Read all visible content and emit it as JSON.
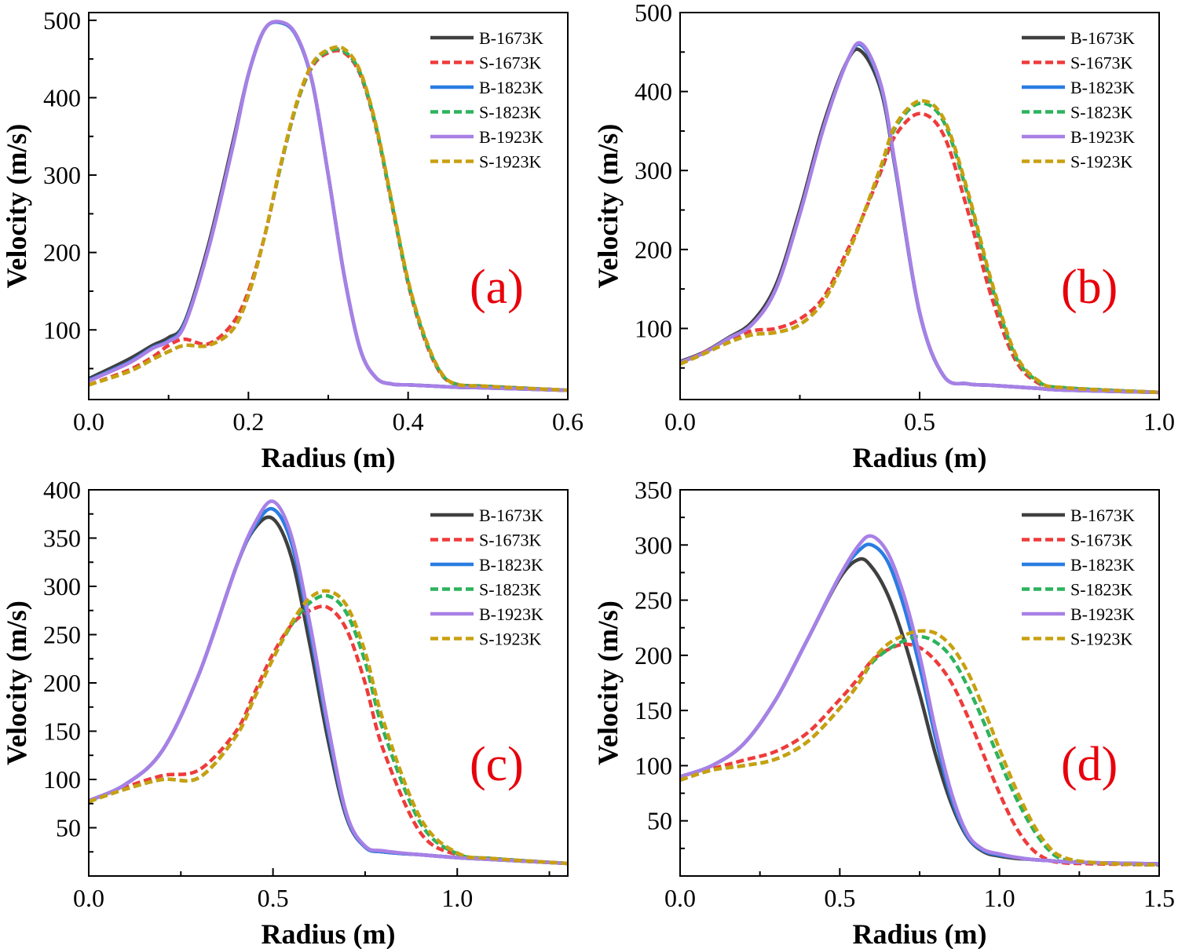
{
  "figure": {
    "series_styles": [
      {
        "name": "B-1673K",
        "color": "#404040",
        "dash": false
      },
      {
        "name": "S-1673K",
        "color": "#ef3b3b",
        "dash": true
      },
      {
        "name": "B-1823K",
        "color": "#2a7de1",
        "dash": false
      },
      {
        "name": "S-1823K",
        "color": "#2db35d",
        "dash": true
      },
      {
        "name": "B-1923K",
        "color": "#a880e6",
        "dash": false
      },
      {
        "name": "S-1923K",
        "color": "#c8a010",
        "dash": true
      }
    ]
  },
  "chart_data": [
    {
      "type": "line",
      "panel_label": "(a)",
      "xlabel": "Radius (m)",
      "ylabel": "Velocity (m/s)",
      "xlim": [
        0,
        0.6
      ],
      "ylim": [
        10,
        510
      ],
      "xticks": [
        0.0,
        0.2,
        0.4,
        0.6
      ],
      "xtick_labels": [
        "0.0",
        "0.2",
        "0.4",
        "0.6"
      ],
      "yticks": [
        100,
        200,
        300,
        400,
        500
      ],
      "ytick_labels": [
        "100",
        "200",
        "300",
        "400",
        "500"
      ],
      "legend": [
        "B-1673K",
        "S-1673K",
        "B-1823K",
        "S-1823K",
        "B-1923K",
        "S-1923K"
      ],
      "x": [
        0,
        0.05,
        0.08,
        0.1,
        0.12,
        0.15,
        0.18,
        0.2,
        0.22,
        0.24,
        0.26,
        0.28,
        0.3,
        0.32,
        0.34,
        0.36,
        0.38,
        0.4,
        0.42,
        0.44,
        0.46,
        0.5,
        0.6
      ],
      "series": [
        {
          "name": "B-1673K",
          "values": [
            37,
            62,
            80,
            90,
            110,
            210,
            340,
            430,
            488,
            497,
            480,
            420,
            300,
            170,
            75,
            38,
            30,
            29,
            28,
            27,
            26,
            25,
            22
          ]
        },
        {
          "name": "S-1673K",
          "values": [
            29,
            48,
            65,
            80,
            88,
            82,
            108,
            150,
            220,
            310,
            390,
            440,
            458,
            458,
            430,
            360,
            260,
            160,
            90,
            45,
            30,
            27,
            22
          ]
        },
        {
          "name": "B-1823K",
          "values": [
            35,
            58,
            77,
            86,
            108,
            205,
            335,
            430,
            488,
            497,
            480,
            420,
            300,
            170,
            75,
            38,
            30,
            29,
            28,
            27,
            26,
            25,
            22
          ]
        },
        {
          "name": "S-1823K",
          "values": [
            29,
            46,
            62,
            72,
            80,
            80,
            100,
            145,
            220,
            310,
            390,
            442,
            460,
            460,
            432,
            362,
            262,
            162,
            92,
            46,
            30,
            27,
            22
          ]
        },
        {
          "name": "B-1923K",
          "values": [
            34,
            57,
            76,
            85,
            106,
            205,
            335,
            430,
            488,
            498,
            481,
            421,
            300,
            170,
            75,
            38,
            30,
            29,
            28,
            27,
            26,
            25,
            22
          ]
        },
        {
          "name": "S-1923K",
          "values": [
            29,
            46,
            62,
            72,
            80,
            80,
            100,
            145,
            220,
            312,
            392,
            444,
            462,
            463,
            434,
            364,
            264,
            164,
            94,
            47,
            30,
            27,
            22
          ]
        }
      ]
    },
    {
      "type": "line",
      "panel_label": "(b)",
      "xlabel": "Radius (m)",
      "ylabel": "Velocity (m/s)",
      "xlim": [
        0,
        1.0
      ],
      "ylim": [
        10,
        500
      ],
      "xticks": [
        0.0,
        0.5,
        1.0
      ],
      "xtick_labels": [
        "0.0",
        "0.5",
        "1.0"
      ],
      "yticks": [
        100,
        200,
        300,
        400,
        500
      ],
      "ytick_labels": [
        "100",
        "200",
        "300",
        "400",
        "500"
      ],
      "legend": [
        "B-1673K",
        "S-1673K",
        "B-1823K",
        "S-1823K",
        "B-1923K",
        "S-1923K"
      ],
      "x": [
        0,
        0.05,
        0.1,
        0.15,
        0.2,
        0.25,
        0.3,
        0.35,
        0.38,
        0.42,
        0.45,
        0.5,
        0.55,
        0.6,
        0.65,
        0.7,
        0.75,
        0.8,
        1.0
      ],
      "series": [
        {
          "name": "B-1673K",
          "values": [
            58,
            70,
            88,
            108,
            155,
            250,
            360,
            440,
            450,
            400,
            300,
            120,
            40,
            30,
            28,
            26,
            24,
            22,
            19
          ]
        },
        {
          "name": "S-1673K",
          "values": [
            55,
            70,
            85,
            97,
            100,
            112,
            140,
            200,
            240,
            300,
            345,
            372,
            345,
            250,
            140,
            60,
            30,
            25,
            19
          ]
        },
        {
          "name": "B-1823K",
          "values": [
            57,
            69,
            87,
            105,
            150,
            245,
            355,
            440,
            458,
            405,
            302,
            120,
            40,
            30,
            28,
            26,
            24,
            22,
            19
          ]
        },
        {
          "name": "S-1823K",
          "values": [
            55,
            68,
            82,
            92,
            95,
            105,
            135,
            195,
            240,
            305,
            355,
            385,
            362,
            270,
            155,
            65,
            32,
            25,
            19
          ]
        },
        {
          "name": "B-1923K",
          "values": [
            57,
            69,
            87,
            105,
            150,
            245,
            355,
            440,
            460,
            407,
            304,
            121,
            40,
            30,
            28,
            26,
            24,
            22,
            19
          ]
        },
        {
          "name": "S-1923K",
          "values": [
            55,
            68,
            82,
            92,
            95,
            105,
            135,
            195,
            240,
            307,
            358,
            388,
            366,
            275,
            160,
            68,
            33,
            25,
            19
          ]
        }
      ]
    },
    {
      "type": "line",
      "panel_label": "(c)",
      "xlabel": "Radius (m)",
      "ylabel": "Velocity (m/s)",
      "xlim": [
        0,
        1.3
      ],
      "ylim": [
        0,
        400
      ],
      "xticks": [
        0.0,
        0.5,
        1.0
      ],
      "xtick_labels": [
        "0.0",
        "0.5",
        "1.0"
      ],
      "yticks": [
        50,
        100,
        150,
        200,
        250,
        300,
        350,
        400
      ],
      "ytick_labels": [
        "50",
        "100",
        "150",
        "200",
        "250",
        "300",
        "350",
        "400"
      ],
      "legend": [
        "B-1673K",
        "S-1673K",
        "B-1823K",
        "S-1823K",
        "B-1923K",
        "S-1923K"
      ],
      "x": [
        0,
        0.1,
        0.2,
        0.3,
        0.4,
        0.45,
        0.5,
        0.55,
        0.6,
        0.65,
        0.7,
        0.75,
        0.8,
        0.9,
        1.0,
        1.1,
        1.3
      ],
      "series": [
        {
          "name": "B-1673K",
          "values": [
            78,
            95,
            130,
            210,
            320,
            360,
            370,
            330,
            240,
            140,
            60,
            30,
            25,
            22,
            19,
            17,
            13
          ]
        },
        {
          "name": "S-1673K",
          "values": [
            77,
            92,
            104,
            110,
            150,
            190,
            230,
            260,
            275,
            278,
            255,
            200,
            130,
            45,
            22,
            18,
            13
          ]
        },
        {
          "name": "B-1823K",
          "values": [
            78,
            95,
            130,
            210,
            320,
            362,
            380,
            345,
            255,
            150,
            62,
            30,
            25,
            22,
            19,
            17,
            13
          ]
        },
        {
          "name": "S-1823K",
          "values": [
            77,
            90,
            100,
            102,
            145,
            185,
            225,
            260,
            283,
            290,
            272,
            222,
            150,
            55,
            23,
            18,
            13
          ]
        },
        {
          "name": "B-1923K",
          "values": [
            78,
            95,
            130,
            210,
            320,
            365,
            388,
            352,
            262,
            155,
            64,
            31,
            26,
            22,
            19,
            17,
            13
          ]
        },
        {
          "name": "S-1923K",
          "values": [
            77,
            90,
            100,
            102,
            145,
            185,
            225,
            262,
            288,
            295,
            280,
            232,
            160,
            60,
            24,
            18,
            13
          ]
        }
      ]
    },
    {
      "type": "line",
      "panel_label": "(d)",
      "xlabel": "Radius (m)",
      "ylabel": "Velocity (m/s)",
      "xlim": [
        0,
        1.5
      ],
      "ylim": [
        0,
        350
      ],
      "xticks": [
        0.0,
        0.5,
        1.0,
        1.5
      ],
      "xtick_labels": [
        "0.0",
        "0.5",
        "1.0",
        "1.5"
      ],
      "yticks": [
        50,
        100,
        150,
        200,
        250,
        300,
        350
      ],
      "ytick_labels": [
        "50",
        "100",
        "150",
        "200",
        "250",
        "300",
        "350"
      ],
      "legend": [
        "B-1673K",
        "S-1673K",
        "B-1823K",
        "S-1823K",
        "B-1923K",
        "S-1923K"
      ],
      "x": [
        0,
        0.1,
        0.2,
        0.3,
        0.4,
        0.5,
        0.56,
        0.6,
        0.65,
        0.7,
        0.75,
        0.8,
        0.85,
        0.9,
        0.95,
        1.0,
        1.05,
        1.1,
        1.15,
        1.2,
        1.3,
        1.5
      ],
      "series": [
        {
          "name": "B-1673K",
          "values": [
            90,
            100,
            120,
            160,
            215,
            270,
            287,
            280,
            255,
            215,
            165,
            110,
            65,
            35,
            22,
            18,
            16,
            15,
            14,
            13,
            12,
            11
          ]
        },
        {
          "name": "S-1673K",
          "values": [
            87,
            97,
            105,
            113,
            130,
            160,
            180,
            195,
            205,
            210,
            207,
            195,
            175,
            145,
            110,
            75,
            45,
            25,
            15,
            12,
            11,
            10
          ]
        },
        {
          "name": "B-1823K",
          "values": [
            90,
            100,
            120,
            160,
            215,
            272,
            295,
            300,
            285,
            245,
            190,
            125,
            70,
            36,
            23,
            19,
            17,
            15,
            14,
            13,
            12,
            11
          ]
        },
        {
          "name": "S-1823K",
          "values": [
            87,
            96,
            100,
            106,
            122,
            152,
            175,
            193,
            205,
            213,
            217,
            212,
            198,
            172,
            140,
            105,
            72,
            45,
            25,
            15,
            12,
            10
          ]
        },
        {
          "name": "B-1923K",
          "values": [
            90,
            100,
            120,
            160,
            215,
            272,
            300,
            308,
            293,
            255,
            200,
            132,
            75,
            38,
            24,
            20,
            17,
            15,
            14,
            13,
            12,
            11
          ]
        },
        {
          "name": "S-1923K",
          "values": [
            87,
            96,
            100,
            106,
            122,
            152,
            175,
            195,
            210,
            218,
            222,
            220,
            208,
            185,
            152,
            115,
            80,
            50,
            28,
            17,
            12,
            10
          ]
        }
      ]
    }
  ]
}
